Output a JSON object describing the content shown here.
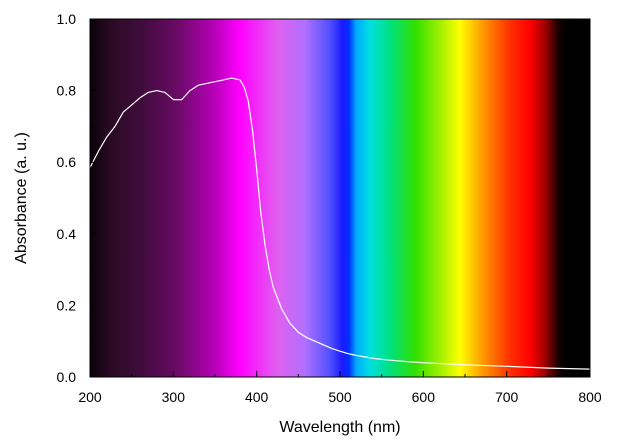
{
  "chart_data": {
    "type": "line",
    "title": "",
    "xlabel": "Wavelength (nm)",
    "ylabel": "Absorbance (a. u.)",
    "xlim": [
      200,
      800
    ],
    "ylim": [
      0.0,
      1.0
    ],
    "xticks": [
      200,
      300,
      400,
      500,
      600,
      700,
      800
    ],
    "xtick_labels": [
      "200",
      "300",
      "400",
      "500",
      "600",
      "700",
      "800"
    ],
    "yticks": [
      0.0,
      0.2,
      0.4,
      0.6,
      0.8,
      1.0
    ],
    "ytick_labels": [
      "0.0",
      "0.2",
      "0.4",
      "0.6",
      "0.8",
      "1.0"
    ],
    "grid": false,
    "legend": "none",
    "background": "visible-spectrum gradient (dark purple → magenta → blue → cyan → green → yellow → orange → red → black)",
    "line_color": "#ffffff",
    "series": [
      {
        "x": [
          200,
          210,
          220,
          230,
          240,
          250,
          260,
          270,
          280,
          290,
          300,
          310,
          320,
          330,
          340,
          350,
          360,
          370,
          380,
          385,
          390,
          395,
          400,
          405,
          410,
          415,
          420,
          430,
          440,
          450,
          460,
          470,
          480,
          490,
          500,
          510,
          520,
          540,
          560,
          580,
          600,
          650,
          700,
          750,
          800
        ],
        "y": [
          0.585,
          0.63,
          0.67,
          0.7,
          0.74,
          0.76,
          0.78,
          0.795,
          0.8,
          0.795,
          0.775,
          0.775,
          0.8,
          0.815,
          0.82,
          0.825,
          0.83,
          0.835,
          0.83,
          0.81,
          0.77,
          0.69,
          0.58,
          0.46,
          0.37,
          0.3,
          0.25,
          0.19,
          0.15,
          0.125,
          0.11,
          0.1,
          0.09,
          0.08,
          0.072,
          0.065,
          0.06,
          0.052,
          0.047,
          0.043,
          0.04,
          0.034,
          0.03,
          0.025,
          0.022
        ]
      }
    ]
  }
}
